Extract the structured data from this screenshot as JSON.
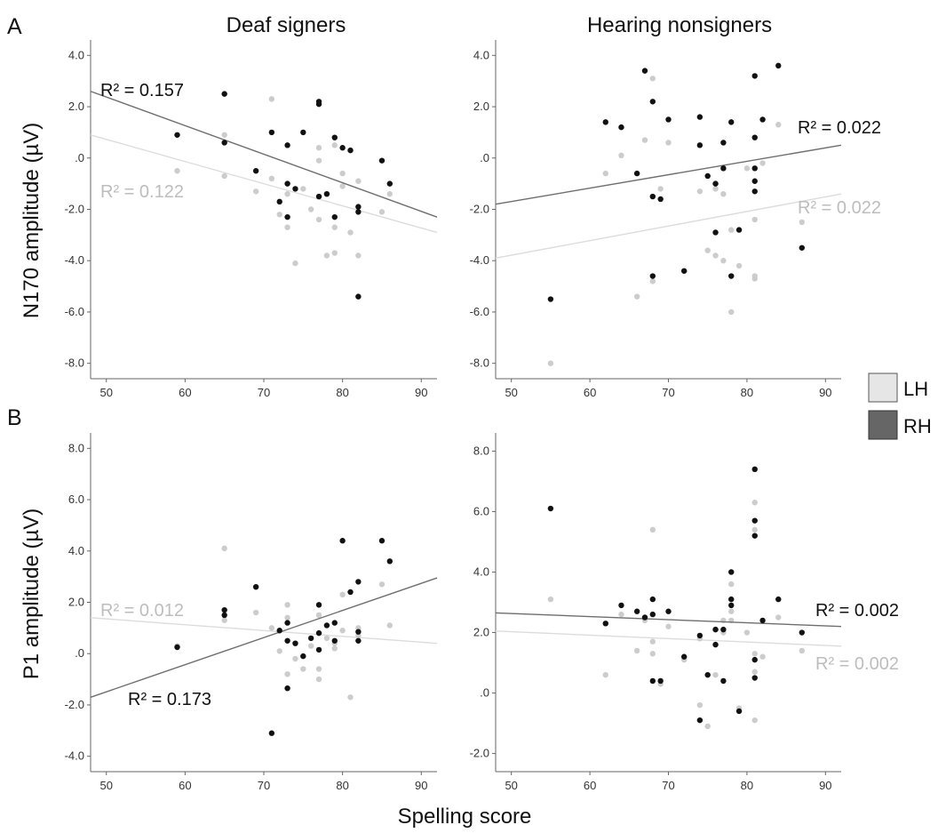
{
  "figure": {
    "panel_labels": [
      "A",
      "B"
    ],
    "column_titles": [
      "Deaf signers",
      "Hearing nonsigners"
    ],
    "legend": [
      {
        "label": "LH",
        "color": "#e6e6e6"
      },
      {
        "label": "RH",
        "color": "#666666"
      }
    ],
    "colors": {
      "LH_point": "#cccccc",
      "RH_point": "#111111",
      "LH_line": "#dcdcdc",
      "RH_line": "#6e6e6e",
      "LH_text": "#bdbdbd",
      "RH_text": "#111111"
    }
  },
  "chart_data": [
    {
      "type": "scatter",
      "panel": "A",
      "title": "Deaf signers",
      "xlabel": "",
      "ylabel": "N170 amplitude (µV)",
      "xlim": [
        48,
        92
      ],
      "ylim": [
        -8.6,
        4.6
      ],
      "xticks": [
        "50",
        "60",
        "70",
        "80",
        "90"
      ],
      "yticks": [
        "4.0",
        "2.0",
        ".0",
        "-2.0",
        "-4.0",
        "-6.0",
        "-8.0"
      ],
      "grid": false,
      "series": [
        {
          "name": "LH",
          "points": [
            [
              59,
              -0.5
            ],
            [
              65,
              0.9
            ],
            [
              65,
              -0.7
            ],
            [
              69,
              -1.3
            ],
            [
              71,
              2.3
            ],
            [
              71,
              -0.8
            ],
            [
              72,
              -2.2
            ],
            [
              73,
              -2.7
            ],
            [
              73,
              -1.4
            ],
            [
              74,
              -4.1
            ],
            [
              75,
              -1.2
            ],
            [
              76,
              -2.0
            ],
            [
              77,
              0.4
            ],
            [
              77,
              -0.1
            ],
            [
              77,
              -2.4
            ],
            [
              78,
              -3.8
            ],
            [
              79,
              0.5
            ],
            [
              79,
              -2.7
            ],
            [
              79,
              -3.7
            ],
            [
              80,
              -0.6
            ],
            [
              80,
              -1.1
            ],
            [
              81,
              -2.9
            ],
            [
              82,
              -0.9
            ],
            [
              82,
              -3.8
            ],
            [
              85,
              -2.1
            ],
            [
              86,
              -1.4
            ]
          ],
          "fit": {
            "x": [
              48,
              92
            ],
            "y": [
              0.9,
              -2.9
            ]
          },
          "r2_label": "R² = 0.122"
        },
        {
          "name": "RH",
          "points": [
            [
              59,
              0.9
            ],
            [
              65,
              2.5
            ],
            [
              65,
              0.6
            ],
            [
              69,
              -0.5
            ],
            [
              71,
              1.0
            ],
            [
              72,
              -1.7
            ],
            [
              73,
              0.5
            ],
            [
              73,
              -1.0
            ],
            [
              73,
              -2.3
            ],
            [
              74,
              -1.2
            ],
            [
              75,
              1.0
            ],
            [
              77,
              2.1
            ],
            [
              77,
              2.2
            ],
            [
              77,
              -1.5
            ],
            [
              78,
              -1.4
            ],
            [
              79,
              0.8
            ],
            [
              79,
              -2.3
            ],
            [
              80,
              0.4
            ],
            [
              81,
              0.3
            ],
            [
              82,
              -1.9
            ],
            [
              82,
              -2.1
            ],
            [
              82,
              -5.4
            ],
            [
              85,
              -0.1
            ],
            [
              86,
              -1.0
            ]
          ],
          "fit": {
            "x": [
              48,
              92
            ],
            "y": [
              2.6,
              -2.3
            ]
          },
          "r2_label": "R² = 0.157"
        }
      ]
    },
    {
      "type": "scatter",
      "panel": "A",
      "title": "Hearing nonsigners",
      "xlabel": "",
      "ylabel": "",
      "xlim": [
        48,
        92
      ],
      "ylim": [
        -8.6,
        4.6
      ],
      "xticks": [
        "50",
        "60",
        "70",
        "80",
        "90"
      ],
      "yticks": [
        "4.0",
        "2.0",
        ".0",
        "-2.0",
        "-4.0",
        "-6.0",
        "-8.0"
      ],
      "grid": false,
      "series": [
        {
          "name": "LH",
          "points": [
            [
              55,
              -8.0
            ],
            [
              62,
              -0.6
            ],
            [
              64,
              0.1
            ],
            [
              66,
              -5.4
            ],
            [
              67,
              0.7
            ],
            [
              68,
              3.1
            ],
            [
              68,
              -4.8
            ],
            [
              69,
              -1.2
            ],
            [
              70,
              0.6
            ],
            [
              72,
              -4.4
            ],
            [
              74,
              -1.3
            ],
            [
              75,
              -3.6
            ],
            [
              76,
              -1.2
            ],
            [
              76,
              -3.8
            ],
            [
              77,
              -4.0
            ],
            [
              77,
              -1.4
            ],
            [
              78,
              -6.0
            ],
            [
              78,
              -2.8
            ],
            [
              78,
              -4.6
            ],
            [
              79,
              -4.2
            ],
            [
              80,
              -0.4
            ],
            [
              81,
              -4.6
            ],
            [
              81,
              -4.7
            ],
            [
              81,
              -2.4
            ],
            [
              82,
              -0.2
            ],
            [
              84,
              1.3
            ],
            [
              87,
              -2.5
            ]
          ],
          "fit": {
            "x": [
              48,
              92
            ],
            "y": [
              -3.9,
              -1.4
            ]
          },
          "r2_label": "R² = 0.022"
        },
        {
          "name": "RH",
          "points": [
            [
              55,
              -5.5
            ],
            [
              62,
              1.4
            ],
            [
              64,
              1.2
            ],
            [
              66,
              -0.6
            ],
            [
              67,
              3.4
            ],
            [
              68,
              2.2
            ],
            [
              68,
              -1.5
            ],
            [
              68,
              -4.6
            ],
            [
              69,
              -1.6
            ],
            [
              70,
              1.5
            ],
            [
              72,
              -4.4
            ],
            [
              74,
              1.6
            ],
            [
              74,
              0.5
            ],
            [
              75,
              -0.7
            ],
            [
              76,
              -1.0
            ],
            [
              76,
              -2.9
            ],
            [
              77,
              0.6
            ],
            [
              77,
              -0.4
            ],
            [
              78,
              1.4
            ],
            [
              78,
              -4.6
            ],
            [
              79,
              -2.8
            ],
            [
              81,
              3.2
            ],
            [
              81,
              0.8
            ],
            [
              81,
              -0.4
            ],
            [
              81,
              -0.9
            ],
            [
              81,
              -1.3
            ],
            [
              82,
              1.5
            ],
            [
              84,
              3.6
            ],
            [
              87,
              -3.5
            ]
          ],
          "fit": {
            "x": [
              48,
              92
            ],
            "y": [
              -1.8,
              0.5
            ]
          },
          "r2_label": "R² = 0.022"
        }
      ]
    },
    {
      "type": "scatter",
      "panel": "B",
      "title": "",
      "xlabel": "",
      "ylabel": "P1 amplitude (µV)",
      "xlim": [
        48,
        92
      ],
      "ylim": [
        -4.6,
        8.6
      ],
      "xticks": [
        "50",
        "60",
        "70",
        "80",
        "90"
      ],
      "yticks": [
        "8.0",
        "6.0",
        "4.0",
        "2.0",
        ".0",
        "-2.0",
        "-4.0"
      ],
      "grid": false,
      "series": [
        {
          "name": "LH",
          "points": [
            [
              59,
              0.3
            ],
            [
              65,
              4.1
            ],
            [
              65,
              1.3
            ],
            [
              69,
              1.6
            ],
            [
              71,
              1.0
            ],
            [
              72,
              0.1
            ],
            [
              73,
              1.9
            ],
            [
              73,
              1.4
            ],
            [
              73,
              -0.8
            ],
            [
              74,
              -0.2
            ],
            [
              75,
              -0.6
            ],
            [
              76,
              0.3
            ],
            [
              77,
              1.5
            ],
            [
              77,
              -0.6
            ],
            [
              77,
              -1.0
            ],
            [
              78,
              0.6
            ],
            [
              79,
              0.2
            ],
            [
              79,
              0.4
            ],
            [
              80,
              2.3
            ],
            [
              80,
              0.9
            ],
            [
              81,
              -1.7
            ],
            [
              82,
              1.0
            ],
            [
              82,
              0.7
            ],
            [
              85,
              2.7
            ],
            [
              86,
              1.1
            ]
          ],
          "fit": {
            "x": [
              48,
              92
            ],
            "y": [
              1.4,
              0.4
            ]
          },
          "r2_label": "R² = 0.012"
        },
        {
          "name": "RH",
          "points": [
            [
              59,
              0.25
            ],
            [
              65,
              1.7
            ],
            [
              65,
              1.5
            ],
            [
              69,
              2.6
            ],
            [
              71,
              -3.1
            ],
            [
              72,
              0.9
            ],
            [
              73,
              1.2
            ],
            [
              73,
              0.5
            ],
            [
              73,
              -1.35
            ],
            [
              74,
              0.4
            ],
            [
              75,
              -0.1
            ],
            [
              76,
              0.6
            ],
            [
              77,
              1.9
            ],
            [
              77,
              0.8
            ],
            [
              77,
              0.15
            ],
            [
              78,
              1.1
            ],
            [
              79,
              1.2
            ],
            [
              79,
              0.5
            ],
            [
              80,
              4.4
            ],
            [
              81,
              2.4
            ],
            [
              82,
              2.8
            ],
            [
              82,
              0.85
            ],
            [
              82,
              0.5
            ],
            [
              85,
              4.4
            ],
            [
              86,
              3.6
            ]
          ],
          "fit": {
            "x": [
              48,
              92
            ],
            "y": [
              -1.7,
              2.95
            ]
          },
          "r2_label": "R² = 0.173"
        }
      ]
    },
    {
      "type": "scatter",
      "panel": "B",
      "title": "",
      "xlabel": "",
      "ylabel": "",
      "xlim": [
        48,
        92
      ],
      "ylim": [
        -2.6,
        8.6
      ],
      "xticks": [
        "50",
        "60",
        "70",
        "80",
        "90"
      ],
      "yticks": [
        "8.0",
        "6.0",
        "4.0",
        "2.0",
        ".0",
        "-2.0"
      ],
      "grid": false,
      "series": [
        {
          "name": "LH",
          "points": [
            [
              55,
              3.1
            ],
            [
              62,
              0.6
            ],
            [
              64,
              2.6
            ],
            [
              66,
              1.4
            ],
            [
              67,
              2.4
            ],
            [
              68,
              5.4
            ],
            [
              68,
              1.3
            ],
            [
              68,
              1.7
            ],
            [
              69,
              0.3
            ],
            [
              70,
              2.2
            ],
            [
              72,
              1.1
            ],
            [
              74,
              -0.4
            ],
            [
              74,
              1.8
            ],
            [
              75,
              -1.1
            ],
            [
              76,
              2.1
            ],
            [
              76,
              0.6
            ],
            [
              77,
              2.4
            ],
            [
              77,
              2.0
            ],
            [
              78,
              3.6
            ],
            [
              78,
              2.7
            ],
            [
              78,
              2.4
            ],
            [
              79,
              -0.5
            ],
            [
              80,
              2.0
            ],
            [
              81,
              6.3
            ],
            [
              81,
              5.4
            ],
            [
              81,
              -0.9
            ],
            [
              81,
              0.7
            ],
            [
              81,
              1.3
            ],
            [
              82,
              1.2
            ],
            [
              84,
              2.5
            ],
            [
              87,
              1.4
            ]
          ],
          "fit": {
            "x": [
              48,
              92
            ],
            "y": [
              2.05,
              1.55
            ]
          },
          "r2_label": "R² = 0.002"
        },
        {
          "name": "RH",
          "points": [
            [
              55,
              6.1
            ],
            [
              62,
              2.3
            ],
            [
              64,
              2.9
            ],
            [
              66,
              2.7
            ],
            [
              67,
              2.5
            ],
            [
              68,
              3.1
            ],
            [
              68,
              2.6
            ],
            [
              68,
              0.4
            ],
            [
              69,
              0.4
            ],
            [
              70,
              2.7
            ],
            [
              72,
              1.2
            ],
            [
              74,
              1.9
            ],
            [
              74,
              -0.9
            ],
            [
              75,
              0.6
            ],
            [
              76,
              2.1
            ],
            [
              76,
              1.6
            ],
            [
              77,
              2.1
            ],
            [
              77,
              0.4
            ],
            [
              78,
              4.0
            ],
            [
              78,
              3.1
            ],
            [
              78,
              2.9
            ],
            [
              79,
              -0.6
            ],
            [
              81,
              7.4
            ],
            [
              81,
              5.7
            ],
            [
              81,
              5.2
            ],
            [
              81,
              1.1
            ],
            [
              81,
              0.5
            ],
            [
              82,
              2.4
            ],
            [
              84,
              3.1
            ],
            [
              87,
              2.0
            ]
          ],
          "fit": {
            "x": [
              48,
              92
            ],
            "y": [
              2.65,
              2.2
            ]
          },
          "r2_label": "R² = 0.002"
        }
      ]
    }
  ],
  "shared_xlabel": "Spelling score"
}
